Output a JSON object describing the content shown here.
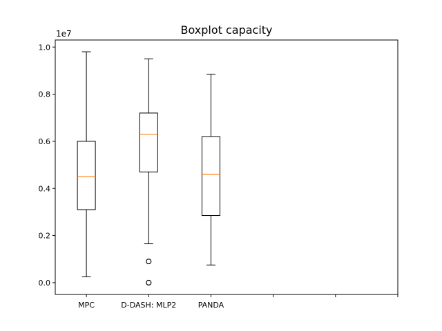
{
  "chart_data": {
    "type": "boxplot",
    "title": "Boxplot capacity",
    "xlabel": "",
    "ylabel": "",
    "y_offset_label": "1e7",
    "ylim": [
      -0.05,
      1.03
    ],
    "yticks": [
      0.0,
      0.2,
      0.4,
      0.6,
      0.8,
      1.0
    ],
    "ytick_labels": [
      "0.0",
      "0.2",
      "0.4",
      "0.6",
      "0.8",
      "1.0"
    ],
    "xlim": [
      0.5,
      6.0
    ],
    "xticks": [
      1,
      2,
      3,
      4,
      5,
      6
    ],
    "xtick_labels": [
      "MPC",
      "D-DASH: MLP2",
      "PANDA",
      "",
      "",
      ""
    ],
    "grid": false,
    "colors": {
      "box": "#000000",
      "median": "#ff7f0e",
      "axes": "#000000"
    },
    "series": [
      {
        "name": "MPC",
        "position": 1,
        "whisker_low": 0.025,
        "q1": 0.31,
        "median": 0.45,
        "q3": 0.6,
        "whisker_high": 0.98,
        "outliers": []
      },
      {
        "name": "D-DASH: MLP2",
        "position": 2,
        "whisker_low": 0.165,
        "q1": 0.47,
        "median": 0.63,
        "q3": 0.72,
        "whisker_high": 0.95,
        "outliers": [
          0.09,
          0.09,
          0.0,
          0.0
        ]
      },
      {
        "name": "PANDA",
        "position": 3,
        "whisker_low": 0.075,
        "q1": 0.285,
        "median": 0.46,
        "q3": 0.62,
        "whisker_high": 0.885,
        "outliers": []
      }
    ]
  }
}
